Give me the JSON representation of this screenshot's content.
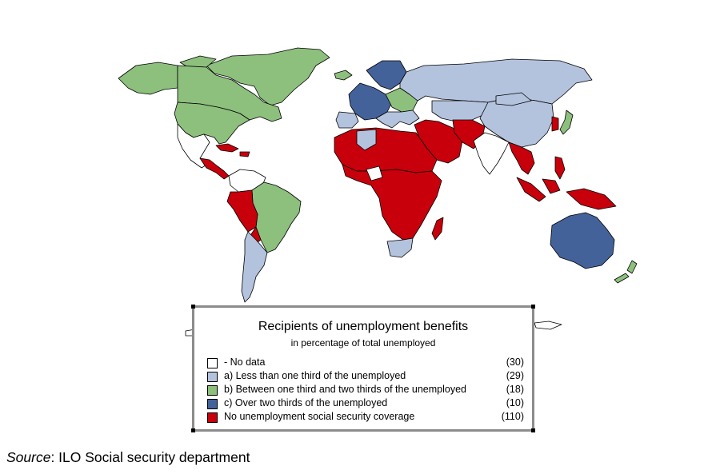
{
  "legend": {
    "title": "Recipients of unemployment benefits",
    "subtitle": "in percentage of total unemployed",
    "items": [
      {
        "label": "- No data",
        "count": "(30)",
        "color": "#ffffff"
      },
      {
        "label": "a) Less than one third of the unemployed",
        "count": "(29)",
        "color": "#b4c3dd"
      },
      {
        "label": "b) Between one third and two thirds of the unemployed",
        "count": "(18)",
        "color": "#8dbf7d"
      },
      {
        "label": "c) Over two thirds of the unemployed",
        "count": "(10)",
        "color": "#44629a"
      },
      {
        "label": "No unemployment social security coverage",
        "count": "(110)",
        "color": "#c8000b"
      }
    ]
  },
  "source": {
    "label": "Source",
    "text": ": ILO Social security department"
  },
  "colors": {
    "no_data": "#ffffff",
    "less_than_third": "#b4c3dd",
    "third_to_two_thirds": "#8dbf7d",
    "over_two_thirds": "#44629a",
    "no_coverage": "#c8000b"
  }
}
